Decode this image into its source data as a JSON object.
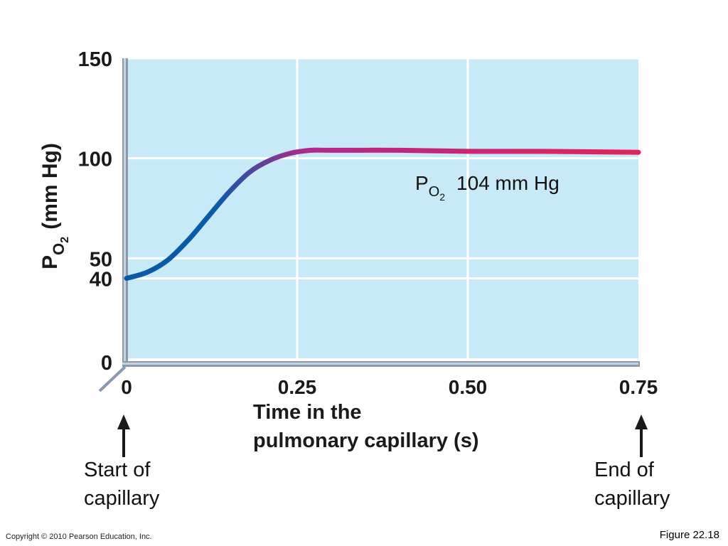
{
  "chart_data": {
    "type": "line",
    "x": [
      0,
      0.03,
      0.06,
      0.09,
      0.12,
      0.15,
      0.18,
      0.21,
      0.24,
      0.27,
      0.3,
      0.4,
      0.5,
      0.6,
      0.75
    ],
    "series": [
      {
        "values": [
          40,
          43,
          49,
          59,
          71,
          83,
          93,
          99,
          102.5,
          104,
          104,
          104,
          103.5,
          103.5,
          103
        ]
      }
    ],
    "y_ticks": [
      "150",
      "100",
      "50",
      "40",
      "0"
    ],
    "y_tick_values": [
      150,
      100,
      50,
      40,
      0
    ],
    "x_ticks": [
      "0",
      "0.25",
      "0.50",
      "0.75"
    ],
    "x_tick_values": [
      0,
      0.25,
      0.5,
      0.75
    ],
    "xlim": [
      0,
      0.75
    ],
    "ylim": [
      0,
      150
    ],
    "xlabel": [
      "Time in the",
      "pulmonary capillary (s)"
    ],
    "ylabel_main": "P",
    "ylabel_sub": "O",
    "ylabel_subsub": "2",
    "ylabel_unit": "(mm Hg)",
    "grid": true,
    "annotation": {
      "main": "P",
      "sub": "O",
      "subsub": "2",
      "text": "104 mm Hg",
      "x": 0.5,
      "y": 88
    },
    "markers": [
      {
        "label": [
          "Start of",
          "capillary"
        ],
        "x": 0
      },
      {
        "label": [
          "End of",
          "capillary"
        ],
        "x": 0.75
      }
    ],
    "colors": {
      "background": "#c8e9f8",
      "grid": "#ffffff",
      "axis": "#8a9aac",
      "line_start": "#0a5aa8",
      "line_mid": "#b4288c",
      "line_end": "#e3245a"
    }
  },
  "footer": {
    "copyright": "Copyright © 2010 Pearson Education, Inc.",
    "figure": "Figure 22.18"
  }
}
